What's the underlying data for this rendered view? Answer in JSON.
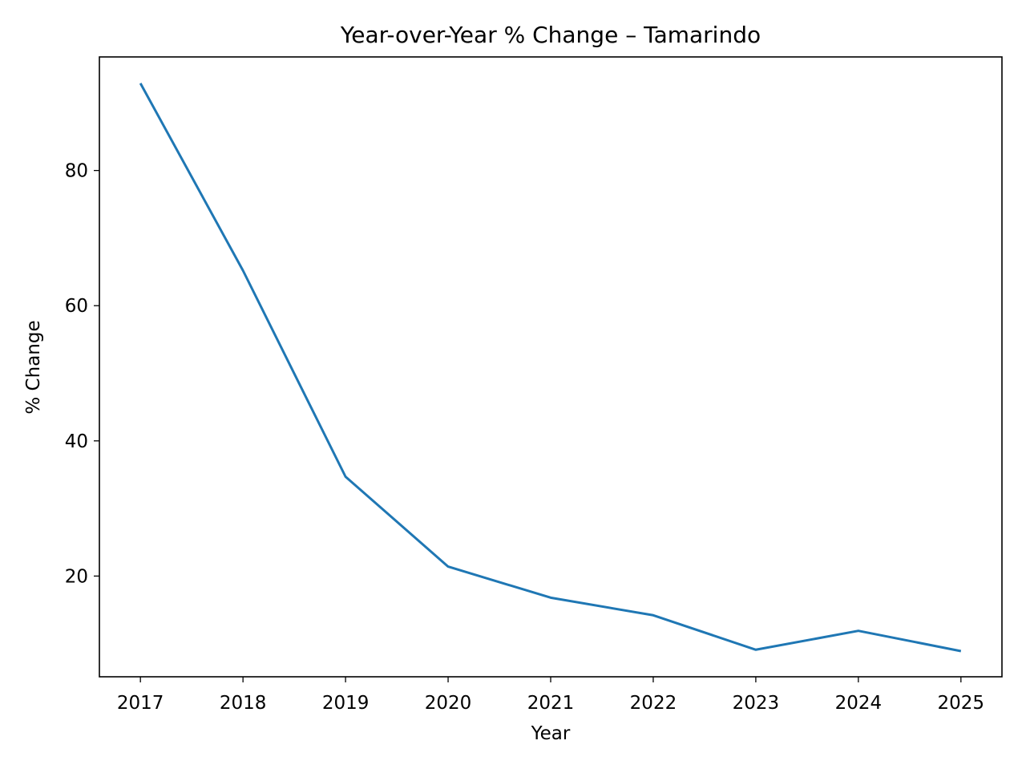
{
  "chart_data": {
    "type": "line",
    "title": "Year-over-Year % Change – Tamarindo",
    "xlabel": "Year",
    "ylabel": "% Change",
    "x": [
      2017,
      2018,
      2019,
      2020,
      2021,
      2022,
      2023,
      2024,
      2025
    ],
    "series": [
      {
        "values": [
          92.9,
          65.2,
          34.7,
          21.4,
          16.8,
          14.2,
          9.1,
          11.9,
          8.9
        ],
        "color": "#1f77b4"
      }
    ],
    "xlim": [
      2016.6,
      2025.4
    ],
    "ylim": [
      5.1,
      96.8
    ],
    "x_ticks": [
      "2017",
      "2018",
      "2019",
      "2020",
      "2021",
      "2022",
      "2023",
      "2024",
      "2025"
    ],
    "y_ticks": [
      20,
      40,
      60,
      80
    ],
    "grid": false,
    "legend": "none"
  }
}
